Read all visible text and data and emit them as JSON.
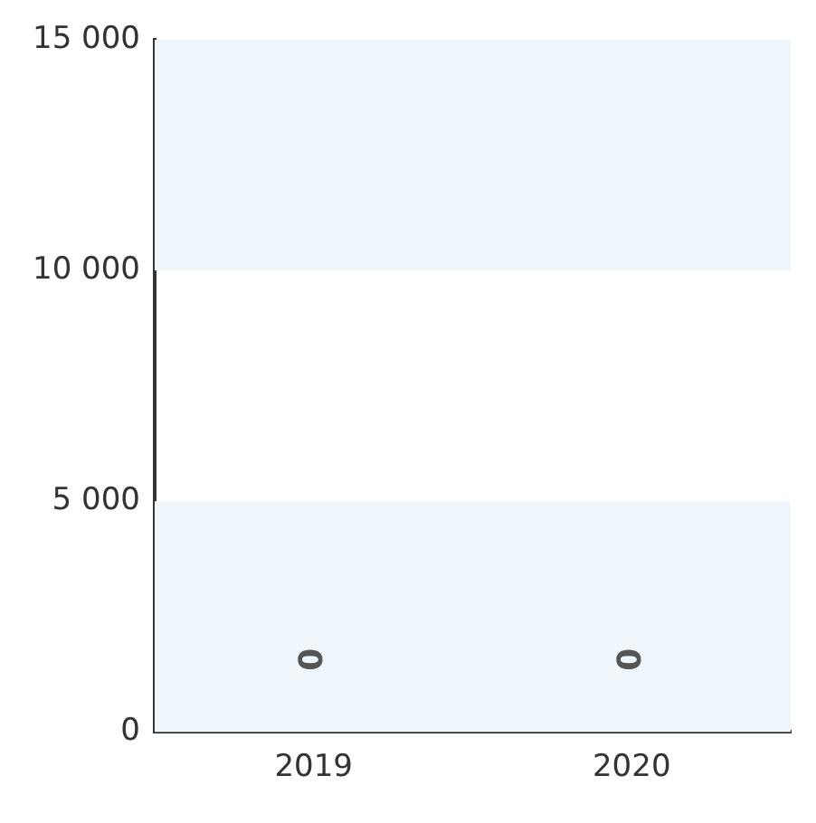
{
  "chart_data": {
    "type": "bar",
    "categories": [
      "2019",
      "2020"
    ],
    "values": [
      0,
      0
    ],
    "ylim": [
      0,
      15000
    ],
    "yticks": [
      {
        "value": 0,
        "label": "0"
      },
      {
        "value": 5000,
        "label": "5 000"
      },
      {
        "value": 10000,
        "label": "10 000"
      },
      {
        "value": 15000,
        "label": "15 000"
      }
    ],
    "bands": [
      {
        "axis": "y",
        "from": 0,
        "to": 5000,
        "color": "#eef6fc"
      },
      {
        "axis": "y",
        "from": 10000,
        "to": 15000,
        "color": "#eef6fc"
      }
    ],
    "data_labels": true
  }
}
